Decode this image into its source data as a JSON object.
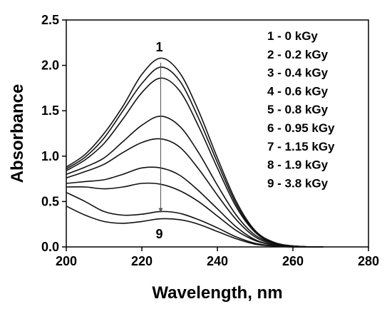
{
  "chart_data": {
    "type": "line",
    "xlabel": "Wavelength, nm",
    "ylabel": "Absorbance",
    "xlim": [
      200,
      280
    ],
    "ylim": [
      0,
      2.5
    ],
    "x_ticks": [
      "200",
      "220",
      "240",
      "260",
      "280"
    ],
    "y_ticks": [
      "0.0",
      "0.5",
      "1.0",
      "1.5",
      "2.0",
      "2.5"
    ],
    "legend_placement": "top-right",
    "legend": [
      "1 - 0 kGy",
      "2 - 0.2 kGy",
      "3 - 0.4 kGy",
      "4 - 0.6 kGy",
      "5 - 0.8 kGy",
      "6 - 0.95 kGy",
      "7 - 1.15 kGy",
      "8 - 1.9 kGy",
      "9 - 3.8 kGy"
    ],
    "annotations": [
      {
        "text": "1",
        "x": 225,
        "y": 2.2
      },
      {
        "text": "9",
        "x": 225,
        "y": 0.14
      }
    ],
    "arrow": {
      "x": 225,
      "from_y": 2.03,
      "to_y": 0.38
    },
    "series": [
      {
        "name": "1 - 0 kGy",
        "x": [
          200,
          205,
          210,
          215,
          220,
          225,
          230,
          235,
          240,
          245,
          250,
          255,
          260,
          265,
          268
        ],
        "y": [
          0.88,
          1.02,
          1.25,
          1.55,
          1.9,
          2.08,
          1.92,
          1.5,
          0.98,
          0.5,
          0.18,
          0.05,
          0.01,
          0.0,
          0.0
        ]
      },
      {
        "name": "2 - 0.2 kGy",
        "x": [
          200,
          205,
          210,
          215,
          220,
          225,
          230,
          235,
          240,
          245,
          250,
          255,
          260,
          265,
          268
        ],
        "y": [
          0.86,
          0.99,
          1.2,
          1.5,
          1.8,
          1.98,
          1.83,
          1.42,
          0.93,
          0.47,
          0.17,
          0.05,
          0.01,
          0.0,
          0.0
        ]
      },
      {
        "name": "3 - 0.4 kGy",
        "x": [
          200,
          205,
          210,
          215,
          220,
          225,
          230,
          235,
          240,
          245,
          250,
          255,
          260,
          265,
          268
        ],
        "y": [
          0.84,
          0.96,
          1.14,
          1.41,
          1.7,
          1.86,
          1.72,
          1.33,
          0.87,
          0.44,
          0.16,
          0.04,
          0.01,
          0.0,
          0.0
        ]
      },
      {
        "name": "4 - 0.6 kGy",
        "x": [
          200,
          205,
          210,
          215,
          220,
          225,
          230,
          235,
          240,
          245,
          250,
          255,
          260,
          265,
          268
        ],
        "y": [
          0.8,
          0.88,
          0.98,
          1.16,
          1.34,
          1.44,
          1.33,
          1.04,
          0.68,
          0.35,
          0.13,
          0.04,
          0.01,
          0.0,
          0.0
        ]
      },
      {
        "name": "5 - 0.8 kGy",
        "x": [
          200,
          205,
          210,
          215,
          220,
          225,
          230,
          235,
          240,
          245,
          250,
          255,
          260,
          265,
          268
        ],
        "y": [
          0.76,
          0.83,
          0.91,
          1.04,
          1.15,
          1.19,
          1.1,
          0.86,
          0.57,
          0.3,
          0.11,
          0.03,
          0.01,
          0.0,
          0.0
        ]
      },
      {
        "name": "6 - 0.95 kGy",
        "x": [
          200,
          205,
          210,
          215,
          220,
          225,
          230,
          235,
          240,
          245,
          250,
          255,
          260,
          265,
          268
        ],
        "y": [
          0.7,
          0.72,
          0.74,
          0.8,
          0.87,
          0.87,
          0.79,
          0.62,
          0.42,
          0.22,
          0.08,
          0.02,
          0.0,
          0.0,
          0.0
        ]
      },
      {
        "name": "7 - 1.15 kGy",
        "x": [
          200,
          205,
          210,
          215,
          220,
          225,
          230,
          235,
          240,
          245,
          250,
          255,
          260,
          265,
          268
        ],
        "y": [
          0.66,
          0.66,
          0.64,
          0.66,
          0.7,
          0.69,
          0.62,
          0.5,
          0.34,
          0.18,
          0.07,
          0.02,
          0.0,
          0.0,
          0.0
        ]
      },
      {
        "name": "8 - 1.9 kGy",
        "x": [
          200,
          205,
          210,
          215,
          220,
          225,
          230,
          235,
          240,
          245,
          250,
          255,
          260,
          265,
          268
        ],
        "y": [
          0.6,
          0.5,
          0.39,
          0.35,
          0.36,
          0.39,
          0.37,
          0.3,
          0.21,
          0.11,
          0.04,
          0.01,
          0.0,
          0.0,
          0.0
        ]
      },
      {
        "name": "9 - 3.8 kGy",
        "x": [
          200,
          205,
          210,
          215,
          220,
          225,
          230,
          235,
          240,
          245,
          250,
          255,
          260,
          265,
          268
        ],
        "y": [
          0.45,
          0.35,
          0.28,
          0.26,
          0.28,
          0.31,
          0.3,
          0.25,
          0.17,
          0.09,
          0.03,
          0.01,
          0.0,
          0.0,
          0.0
        ]
      }
    ]
  }
}
